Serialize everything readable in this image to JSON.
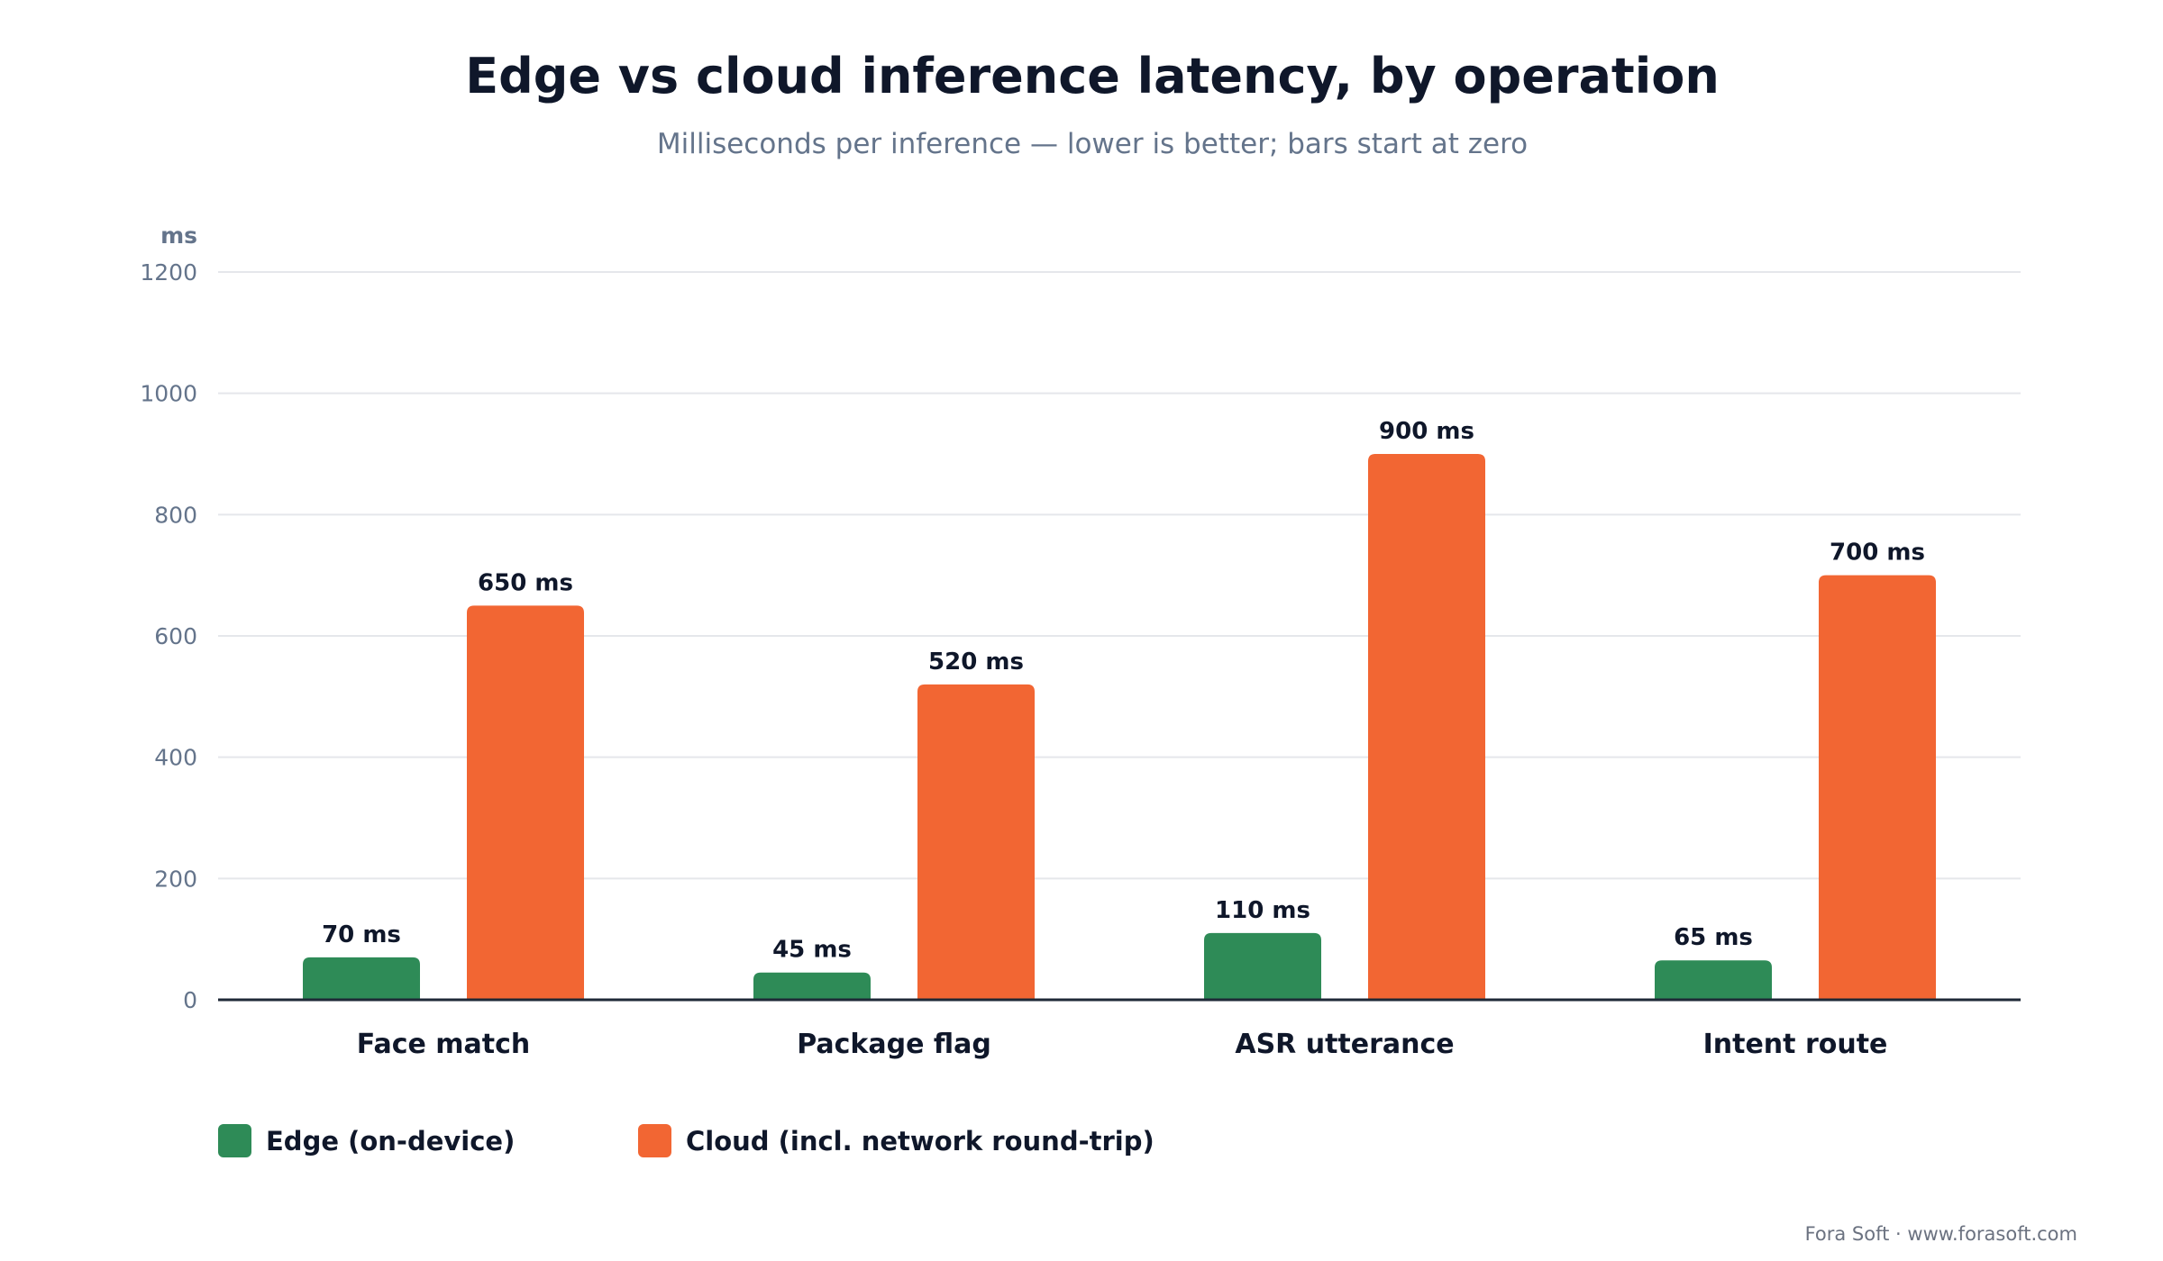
{
  "title": "Edge vs cloud inference latency, by operation",
  "subtitle": "Milliseconds per inference — lower is better; bars start at zero",
  "footer": "Fora Soft · www.forasoft.com",
  "chart_data": {
    "type": "bar",
    "title": "Edge vs cloud inference latency, by operation",
    "subtitle": "Milliseconds per inference — lower is better; bars start at zero",
    "xlabel": "",
    "ylabel": "ms",
    "ylim": [
      0,
      1200
    ],
    "yticks": [
      0,
      200,
      400,
      600,
      800,
      1000,
      1200
    ],
    "grid": true,
    "legend_position": "bottom-left",
    "categories": [
      "Face match",
      "Package flag",
      "ASR utterance",
      "Intent route"
    ],
    "series": [
      {
        "name": "Edge (on-device)",
        "color": "#2e8b57",
        "values": [
          70,
          45,
          110,
          65
        ],
        "labels": [
          "70 ms",
          "45 ms",
          "110 ms",
          "65 ms"
        ]
      },
      {
        "name": "Cloud (incl. network round-trip)",
        "color": "#f26633",
        "values": [
          650,
          520,
          900,
          700
        ],
        "labels": [
          "650 ms",
          "520 ms",
          "900 ms",
          "700 ms"
        ]
      }
    ]
  }
}
